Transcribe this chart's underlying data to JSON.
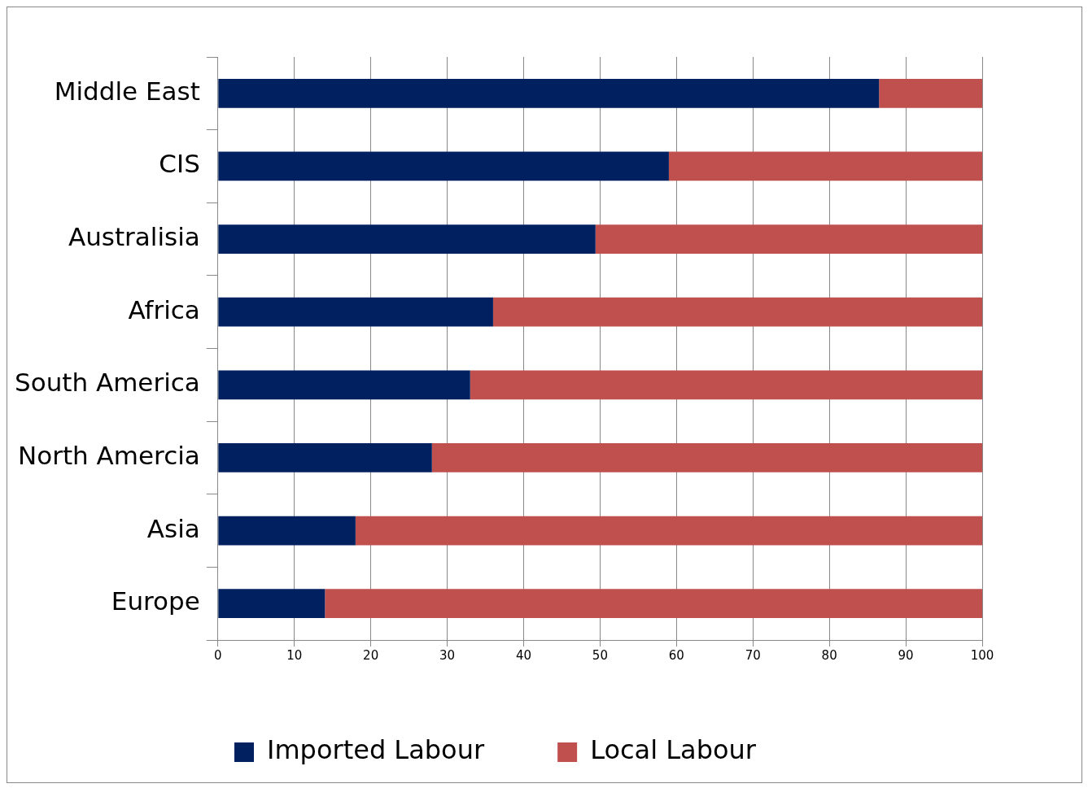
{
  "chart_data": {
    "type": "bar",
    "orientation": "horizontal",
    "stacked": true,
    "categories": [
      "Middle East",
      "CIS",
      "Australisia",
      "Africa",
      "South America",
      "North Amercia",
      "Asia",
      "Europe"
    ],
    "series": [
      {
        "name": "Imported Labour",
        "color": "#002060",
        "values": [
          86.5,
          59,
          49.4,
          36,
          33,
          28,
          18,
          14
        ]
      },
      {
        "name": "Local Labour",
        "color": "#c0504d",
        "values": [
          13.5,
          41,
          50.6,
          64,
          67,
          72,
          82,
          86
        ]
      }
    ],
    "xlim": [
      0,
      100
    ],
    "xticks": [
      0,
      10,
      20,
      30,
      40,
      50,
      60,
      70,
      80,
      90,
      100
    ],
    "grid": "x",
    "legend": "bottom"
  }
}
